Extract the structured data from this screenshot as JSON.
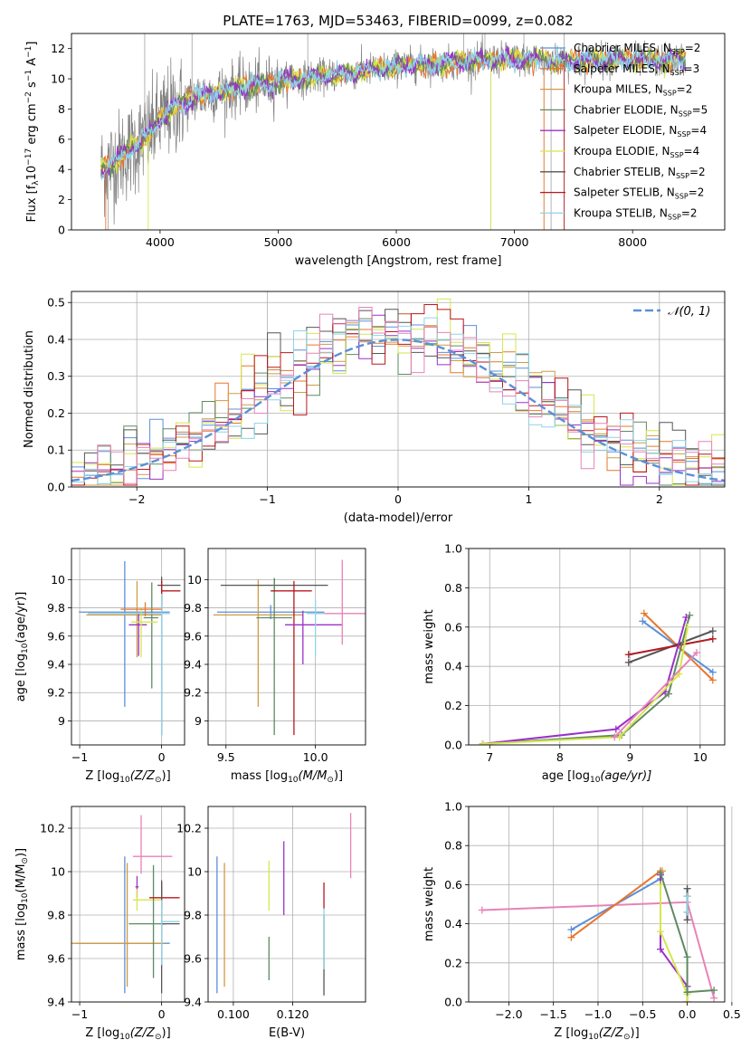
{
  "colors": {
    "chabrier_miles": "#5b8fd9",
    "salpeter_miles": "#e8762c",
    "kroupa_miles": "#d19a46",
    "chabrier_elodie": "#5f8a62",
    "salpeter_elodie": "#9932c8",
    "kroupa_elodie": "#d6e64b",
    "chabrier_stelib": "#555555",
    "salpeter_stelib": "#b8181e",
    "kroupa_stelib": "#8fd3e6",
    "pink": "#e882b8",
    "spectrum_gray": "#808080",
    "spectrum_cyan": "#6ed6d6",
    "normal_dash": "#5b8fd9"
  },
  "chart_data": [
    {
      "id": "spectrum",
      "type": "line",
      "title": "PLATE=1763, MJD=53463, FIBERID=0099, z=0.082",
      "xlabel": "wavelength [Angstrom, rest frame]",
      "ylabel_parts": [
        "Flux [f",
        "λ",
        "10",
        "−17",
        " erg cm",
        "−2",
        " s",
        "−1",
        " A",
        "−1",
        "]"
      ],
      "xlim": [
        3250,
        8780
      ],
      "ylim": [
        0,
        13
      ],
      "xticks": [
        4000,
        5000,
        6000,
        7000,
        8000
      ],
      "yticks": [
        0,
        2,
        4,
        6,
        8,
        10,
        12
      ],
      "legend": [
        {
          "name": "Chabrier MILES",
          "nssp": "2",
          "color_key": "chabrier_miles"
        },
        {
          "name": "Salpeter MILES",
          "nssp": "3",
          "color_key": "salpeter_miles"
        },
        {
          "name": "Kroupa MILES",
          "nssp": "2",
          "color_key": "kroupa_miles"
        },
        {
          "name": "Chabrier ELODIE",
          "nssp": "5",
          "color_key": "chabrier_elodie"
        },
        {
          "name": "Salpeter ELODIE",
          "nssp": "4",
          "color_key": "salpeter_elodie"
        },
        {
          "name": "Kroupa ELODIE",
          "nssp": "4",
          "color_key": "kroupa_elodie"
        },
        {
          "name": "Chabrier STELIB",
          "nssp": "2",
          "color_key": "chabrier_stelib"
        },
        {
          "name": "Salpeter STELIB",
          "nssp": "2",
          "color_key": "salpeter_stelib"
        },
        {
          "name": "Kroupa STELIB",
          "nssp": "2",
          "color_key": "kroupa_stelib"
        }
      ],
      "legend_suffix_prefix": ", N",
      "legend_suffix_sub": "SSP",
      "continuum_x": [
        3500,
        3700,
        3900,
        4000,
        4100,
        4300,
        4600,
        5000,
        5400,
        5800,
        6100,
        6400,
        6700,
        7000,
        7300,
        7600,
        7900,
        8200,
        8500
      ],
      "continuum_y": [
        4.0,
        5.0,
        6.3,
        7.3,
        8.0,
        8.8,
        9.3,
        9.8,
        10.2,
        10.6,
        10.9,
        11.0,
        11.2,
        11.3,
        11.2,
        11.2,
        11.3,
        11.2,
        11.3
      ]
    },
    {
      "id": "residuals",
      "type": "histogram",
      "xlabel": "(data-model)/error",
      "ylabel": "Normed distribution",
      "xlim": [
        -2.5,
        2.5
      ],
      "ylim": [
        0,
        0.53
      ],
      "xticks": [
        -2,
        -1,
        0,
        1,
        2
      ],
      "xticklabels": [
        "−2",
        "−1",
        "0",
        "1",
        "2"
      ],
      "yticks": [
        0.0,
        0.1,
        0.2,
        0.3,
        0.4,
        0.5
      ],
      "yticklabels": [
        "0.0",
        "0.1",
        "0.2",
        "0.3",
        "0.4",
        "0.5"
      ],
      "legend": [
        {
          "name": "𝒩(0, 1)",
          "color_key": "normal_dash",
          "style": "dashed"
        }
      ],
      "bin_width": 0.1,
      "bin_start": -2.5
    },
    {
      "id": "age-vs-Z",
      "type": "errorbar",
      "xlabel_parts": [
        "Z [log",
        "10",
        "(Z/Z",
        "⊙",
        ")]"
      ],
      "ylabel_parts": [
        "age  [log",
        "10",
        "(age/yr)]"
      ],
      "xlim": [
        -1.1,
        0.28
      ],
      "ylim": [
        8.83,
        10.22
      ],
      "xticks": [
        -1,
        0
      ],
      "xticklabels": [
        "−1",
        "0"
      ],
      "yticks": [
        9.0,
        9.2,
        9.4,
        9.6,
        9.8,
        10.0
      ],
      "points": [
        {
          "color_key": "chabrier_miles",
          "x": -0.45,
          "xerr": [
            0.56,
            0.55
          ],
          "y": 9.77,
          "yerr": [
            0.67,
            0.36
          ]
        },
        {
          "color_key": "kroupa_miles",
          "x": -0.3,
          "xerr": [
            0.62,
            0.3
          ],
          "y": 9.75,
          "yerr": [
            0.3,
            0.24
          ]
        },
        {
          "color_key": "salpeter_elodie",
          "x": -0.28,
          "xerr": [
            0.12,
            0.1
          ],
          "y": 9.68,
          "yerr": [
            0.22,
            0.08
          ]
        },
        {
          "color_key": "chabrier_elodie",
          "x": -0.12,
          "xerr": [
            0.1,
            0.08
          ],
          "y": 9.73,
          "yerr": [
            0.5,
            0.25
          ]
        },
        {
          "color_key": "kroupa_elodie",
          "x": -0.25,
          "xerr": [
            0.12,
            0.2
          ],
          "y": 9.7,
          "yerr": [
            0.25,
            0.1
          ]
        },
        {
          "color_key": "chabrier_stelib",
          "x": 0.0,
          "xerr": [
            0.05,
            0.23
          ],
          "y": 9.96,
          "yerr": [
            1.06,
            0.06
          ]
        },
        {
          "color_key": "salpeter_stelib",
          "x": 0.0,
          "xerr": [
            0.0,
            0.23
          ],
          "y": 9.92,
          "yerr": [
            0.1,
            0.07
          ]
        },
        {
          "color_key": "kroupa_stelib",
          "x": 0.0,
          "xerr": [
            0.9,
            0.1
          ],
          "y": 9.76,
          "yerr": [
            0.86,
            0.14
          ]
        },
        {
          "color_key": "salpeter_miles",
          "x": -0.2,
          "xerr": [
            0.3,
            0.2
          ],
          "y": 9.79,
          "yerr": [
            0.05,
            0.05
          ]
        }
      ]
    },
    {
      "id": "age-vs-mass",
      "type": "errorbar",
      "xlabel_parts": [
        "mass [log",
        "10",
        "(M/M",
        "⊙",
        ")]"
      ],
      "ylabel_parts": [],
      "xlim": [
        9.4,
        10.28
      ],
      "ylim": [
        8.83,
        10.22
      ],
      "xticks": [
        9.5,
        10.0
      ],
      "xticklabels": [
        "9.5",
        "10.0"
      ],
      "yticks": [
        9.0,
        9.2,
        9.4,
        9.6,
        9.8,
        10.0
      ],
      "points": [
        {
          "color_key": "chabrier_miles",
          "x": 9.75,
          "xerr": [
            0.3,
            0.3
          ],
          "y": 9.77,
          "yerr": [
            0.05,
            0.05
          ]
        },
        {
          "color_key": "kroupa_miles",
          "x": 9.68,
          "xerr": [
            0.25,
            0.25
          ],
          "y": 9.75,
          "yerr": [
            0.65,
            0.25
          ]
        },
        {
          "color_key": "chabrier_stelib",
          "x": 9.77,
          "xerr": [
            0.3,
            0.3
          ],
          "y": 9.96,
          "yerr": [
            0.05,
            0.05
          ]
        },
        {
          "color_key": "chabrier_elodie",
          "x": 9.77,
          "xerr": [
            0.1,
            0.1
          ],
          "y": 9.73,
          "yerr": [
            0.83,
            0.28
          ]
        },
        {
          "color_key": "salpeter_stelib",
          "x": 9.88,
          "xerr": [
            0.13,
            0.1
          ],
          "y": 9.92,
          "yerr": [
            1.02,
            0.07
          ]
        },
        {
          "color_key": "salpeter_elodie",
          "x": 9.93,
          "xerr": [
            0.1,
            0.22
          ],
          "y": 9.68,
          "yerr": [
            0.28,
            0.1
          ]
        },
        {
          "color_key": "pink",
          "x": 10.15,
          "xerr": [
            0.15,
            0.15
          ],
          "y": 9.76,
          "yerr": [
            0.22,
            0.38
          ]
        },
        {
          "color_key": "kroupa_stelib",
          "x": 10.0,
          "xerr": [
            0.05,
            0.05
          ],
          "y": 9.76,
          "yerr": [
            0.3,
            0.1
          ]
        }
      ]
    },
    {
      "id": "massweight-vs-age",
      "type": "line",
      "xlabel_parts": [
        "age  [log",
        "10",
        "(age/yr)]"
      ],
      "ylabel": "mass weight",
      "xlim": [
        6.7,
        10.35
      ],
      "ylim": [
        0,
        1.0
      ],
      "xticks": [
        7,
        8,
        9,
        10
      ],
      "yticks": [
        0.0,
        0.2,
        0.4,
        0.6,
        0.8,
        1.0
      ],
      "yticklabels": [
        "0.0",
        "0.2",
        "0.4",
        "0.6",
        "0.8",
        "1.0"
      ],
      "series": [
        {
          "color_key": "chabrier_miles",
          "x": [
            9.18,
            10.18
          ],
          "y": [
            0.63,
            0.37
          ]
        },
        {
          "color_key": "salpeter_miles",
          "x": [
            9.2,
            10.18
          ],
          "y": [
            0.67,
            0.33
          ]
        },
        {
          "color_key": "kroupa_stelib",
          "x": [
            9.0,
            10.18
          ],
          "y": [
            0.46,
            0.54
          ]
        },
        {
          "color_key": "chabrier_stelib",
          "x": [
            8.98,
            10.18
          ],
          "y": [
            0.42,
            0.58
          ]
        },
        {
          "color_key": "salpeter_stelib",
          "x": [
            8.98,
            10.18
          ],
          "y": [
            0.46,
            0.54
          ]
        },
        {
          "color_key": "chabrier_elodie",
          "x": [
            6.9,
            8.88,
            9.55,
            9.85
          ],
          "y": [
            0.005,
            0.05,
            0.26,
            0.66
          ]
        },
        {
          "color_key": "salpeter_elodie",
          "x": [
            6.9,
            8.8,
            9.5,
            9.8
          ],
          "y": [
            0.005,
            0.08,
            0.27,
            0.65
          ]
        },
        {
          "color_key": "kroupa_elodie",
          "x": [
            6.9,
            8.85,
            9.7,
            9.82
          ],
          "y": [
            0.005,
            0.04,
            0.36,
            0.6
          ]
        },
        {
          "color_key": "pink",
          "x": [
            8.78,
            9.95
          ],
          "y": [
            0.04,
            0.47
          ]
        }
      ]
    },
    {
      "id": "mass-vs-Z",
      "type": "errorbar",
      "xlabel_parts": [
        "Z [log",
        "10",
        "(Z/Z",
        "⊙",
        ")]"
      ],
      "ylabel_parts": [
        "mass [log",
        "10",
        "(M/M",
        "⊙",
        ")]"
      ],
      "xlim": [
        -1.1,
        0.28
      ],
      "ylim": [
        9.4,
        10.3
      ],
      "xticks": [
        -1,
        0
      ],
      "xticklabels": [
        "−1",
        "0"
      ],
      "yticks": [
        9.4,
        9.6,
        9.8,
        10.0,
        10.2
      ],
      "points": [
        {
          "color_key": "chabrier_miles",
          "x": -0.45,
          "xerr": [
            0.6,
            0.55
          ],
          "y": 9.67,
          "yerr": [
            0.23,
            0.4
          ]
        },
        {
          "color_key": "kroupa_miles",
          "x": -0.42,
          "xerr": [
            0.7,
            0.45
          ],
          "y": 9.67,
          "yerr": [
            0.2,
            0.37
          ]
        },
        {
          "color_key": "pink",
          "x": -0.25,
          "xerr": [
            0.1,
            0.38
          ],
          "y": 10.07,
          "yerr": [
            0.08,
            0.19
          ]
        },
        {
          "color_key": "salpeter_elodie",
          "x": -0.3,
          "xerr": [
            0.02,
            0.02
          ],
          "y": 9.93,
          "yerr": [
            0.05,
            0.05
          ]
        },
        {
          "color_key": "kroupa_elodie",
          "x": -0.3,
          "xerr": [
            0.05,
            0.3
          ],
          "y": 9.87,
          "yerr": [
            0.05,
            0.05
          ]
        },
        {
          "color_key": "chabrier_elodie",
          "x": -0.1,
          "xerr": [
            0.3,
            0.15
          ],
          "y": 9.76,
          "yerr": [
            0.25,
            0.27
          ]
        },
        {
          "color_key": "salpeter_stelib",
          "x": 0.0,
          "xerr": [
            0.15,
            0.22
          ],
          "y": 9.88,
          "yerr": [
            0.05,
            0.07
          ]
        },
        {
          "color_key": "chabrier_stelib",
          "x": 0.0,
          "xerr": [
            0.0,
            0.22
          ],
          "y": 9.76,
          "yerr": [
            0.32,
            0.2
          ]
        },
        {
          "color_key": "kroupa_stelib",
          "x": 0.0,
          "xerr": [
            0.0,
            0.22
          ],
          "y": 9.77,
          "yerr": [
            0.2,
            0.1
          ]
        }
      ]
    },
    {
      "id": "mass-vs-EBV",
      "type": "errorbar",
      "xlabel": "E(B-V)",
      "xlim": [
        0.0915,
        0.1445
      ],
      "ylim": [
        9.4,
        10.3
      ],
      "xticks": [
        0.1,
        0.12
      ],
      "xticklabels": [
        "0.100",
        "0.120"
      ],
      "yticks": [
        9.4,
        9.6,
        9.8,
        10.0,
        10.2
      ],
      "points": [
        {
          "color_key": "chabrier_miles",
          "x": 0.0945,
          "y": 9.67,
          "yerr": [
            0.23,
            0.4
          ]
        },
        {
          "color_key": "kroupa_miles",
          "x": 0.097,
          "y": 9.67,
          "yerr": [
            0.2,
            0.37
          ]
        },
        {
          "color_key": "kroupa_elodie",
          "x": 0.112,
          "y": 9.87,
          "yerr": [
            0.05,
            0.18
          ]
        },
        {
          "color_key": "chabrier_elodie",
          "x": 0.112,
          "y": 9.6,
          "yerr": [
            0.1,
            0.1
          ]
        },
        {
          "color_key": "salpeter_elodie",
          "x": 0.117,
          "y": 9.97,
          "yerr": [
            0.17,
            0.17
          ]
        },
        {
          "color_key": "salpeter_stelib",
          "x": 0.1305,
          "y": 9.88,
          "yerr": [
            0.05,
            0.07
          ]
        },
        {
          "color_key": "chabrier_stelib",
          "x": 0.1305,
          "y": 9.6,
          "yerr": [
            0.17,
            0.2
          ]
        },
        {
          "color_key": "kroupa_stelib",
          "x": 0.1305,
          "y": 9.7,
          "yerr": [
            0.15,
            0.13
          ]
        },
        {
          "color_key": "pink",
          "x": 0.1395,
          "y": 10.12,
          "yerr": [
            0.15,
            0.15
          ]
        }
      ]
    },
    {
      "id": "massweight-vs-Z",
      "type": "line",
      "xlabel_parts": [
        "Z [log",
        "10",
        "(Z/Z",
        "⊙",
        ")]"
      ],
      "ylabel": "mass weight",
      "xlim": [
        -2.45,
        0.42
      ],
      "ylim": [
        0,
        1.0
      ],
      "xticks": [
        -2.0,
        -1.5,
        -1.0,
        -0.5,
        0.0,
        0.5
      ],
      "xticklabels": [
        "−2.0",
        "−1.5",
        "−1.0",
        "−0.5",
        "0.0",
        "0.5"
      ],
      "yticks": [
        0.0,
        0.2,
        0.4,
        0.6,
        0.8,
        1.0
      ],
      "yticklabels": [
        "0.0",
        "0.2",
        "0.4",
        "0.6",
        "0.8",
        "1.0"
      ],
      "series": [
        {
          "color_key": "pink",
          "x": [
            -2.3,
            0.0,
            0.3
          ],
          "y": [
            0.47,
            0.51,
            0.02
          ]
        },
        {
          "color_key": "chabrier_miles",
          "x": [
            -1.3,
            -0.3
          ],
          "y": [
            0.37,
            0.63
          ]
        },
        {
          "color_key": "salpeter_miles",
          "x": [
            -1.3,
            -0.3
          ],
          "y": [
            0.33,
            0.67
          ]
        },
        {
          "color_key": "kroupa_miles",
          "x": [
            -0.3,
            -0.28
          ],
          "y": [
            0.66,
            0.67
          ]
        },
        {
          "color_key": "salpeter_elodie",
          "x": [
            -0.3,
            -0.3,
            0.0,
            0.0
          ],
          "y": [
            0.65,
            0.27,
            0.08,
            0.0
          ]
        },
        {
          "color_key": "kroupa_elodie",
          "x": [
            -0.3,
            -0.3,
            0.0,
            0.0
          ],
          "y": [
            0.6,
            0.36,
            0.04,
            0.0
          ]
        },
        {
          "color_key": "chabrier_elodie",
          "x": [
            -0.3,
            0.0,
            0.0,
            0.0,
            0.3
          ],
          "y": [
            0.66,
            0.23,
            0.05,
            0.05,
            0.06
          ]
        },
        {
          "color_key": "chabrier_stelib",
          "x": [
            0.0,
            0.0
          ],
          "y": [
            0.42,
            0.58
          ]
        },
        {
          "color_key": "salpeter_stelib",
          "x": [
            0.0,
            0.0
          ],
          "y": [
            0.46,
            0.54
          ]
        },
        {
          "color_key": "kroupa_stelib",
          "x": [
            0.0,
            0.0
          ],
          "y": [
            0.46,
            0.54
          ]
        }
      ]
    }
  ]
}
